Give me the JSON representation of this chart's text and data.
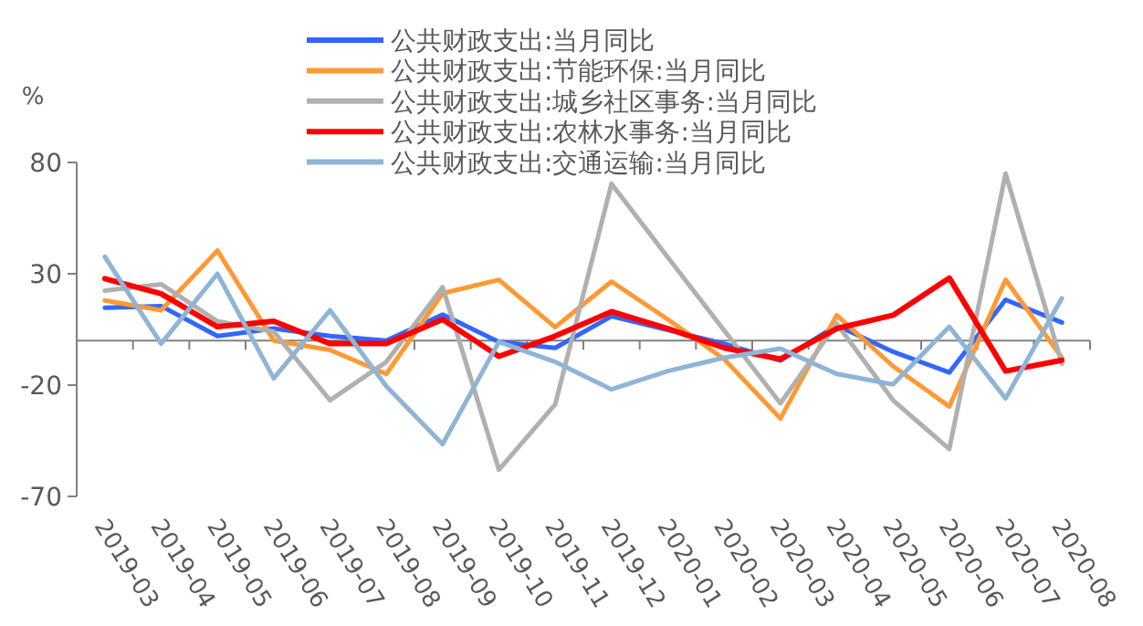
{
  "chart_data": {
    "type": "line",
    "ylabel": "%",
    "categories": [
      "2019-03",
      "2019-04",
      "2019-05",
      "2019-06",
      "2019-07",
      "2019-08",
      "2019-09",
      "2019-10",
      "2019-11",
      "2019-12",
      "2020-01",
      "2020-02",
      "2020-03",
      "2020-04",
      "2020-05",
      "2020-06",
      "2020-07",
      "2020-08"
    ],
    "ylim": [
      -70,
      80
    ],
    "yticks": [
      -70,
      -20,
      30,
      80
    ],
    "legend": "top",
    "grid": false,
    "marker": "none",
    "line_style": "solid",
    "series": [
      {
        "name": "公共财政支出:当月同比",
        "color": "#3366ff",
        "values": [
          14.7,
          15.5,
          2,
          5.4,
          2,
          0,
          11.7,
          -0.6,
          -3.3,
          10.9,
          4.8,
          -1.4,
          -9,
          6.8,
          -5,
          -14.3,
          18.3,
          8.1
        ]
      },
      {
        "name": "公共财政支出:节能环保:当月同比",
        "color": "#ff9933",
        "values": [
          18,
          13.6,
          40.4,
          0,
          -4.2,
          -15,
          21.2,
          27.3,
          6,
          26.5,
          9.5,
          -8.3,
          -35,
          11.4,
          -11.5,
          -29.6,
          27.3,
          -7.7
        ]
      },
      {
        "name": "公共财政支出:城乡社区事务:当月同比",
        "color": "#b0b0b0",
        "values": [
          22.4,
          25.3,
          8.7,
          4,
          -26.8,
          -9.6,
          24,
          -58,
          -28.7,
          70.4,
          37.4,
          4.6,
          -28.2,
          7.6,
          -26.8,
          -48.7,
          75,
          -10.4
        ]
      },
      {
        "name": "公共财政支出:农林水事务:当月同比",
        "color": "#ff0000",
        "values": [
          27.8,
          21,
          6.2,
          8.7,
          -1.4,
          -1.4,
          9.5,
          -7.1,
          2,
          13,
          5.4,
          -3.3,
          -8.3,
          5.4,
          11.4,
          28.1,
          -13.7,
          -8.8
        ]
      },
      {
        "name": "公共财政支出:交通运输:当月同比",
        "color": "#8fb4d6",
        "values": [
          37.6,
          -1.4,
          30,
          -17,
          13.6,
          -20.5,
          -46.5,
          -0.6,
          -9.6,
          -21.9,
          -13.7,
          -7.7,
          -3.6,
          -15,
          -19.7,
          6.2,
          -26,
          19
        ]
      }
    ]
  }
}
